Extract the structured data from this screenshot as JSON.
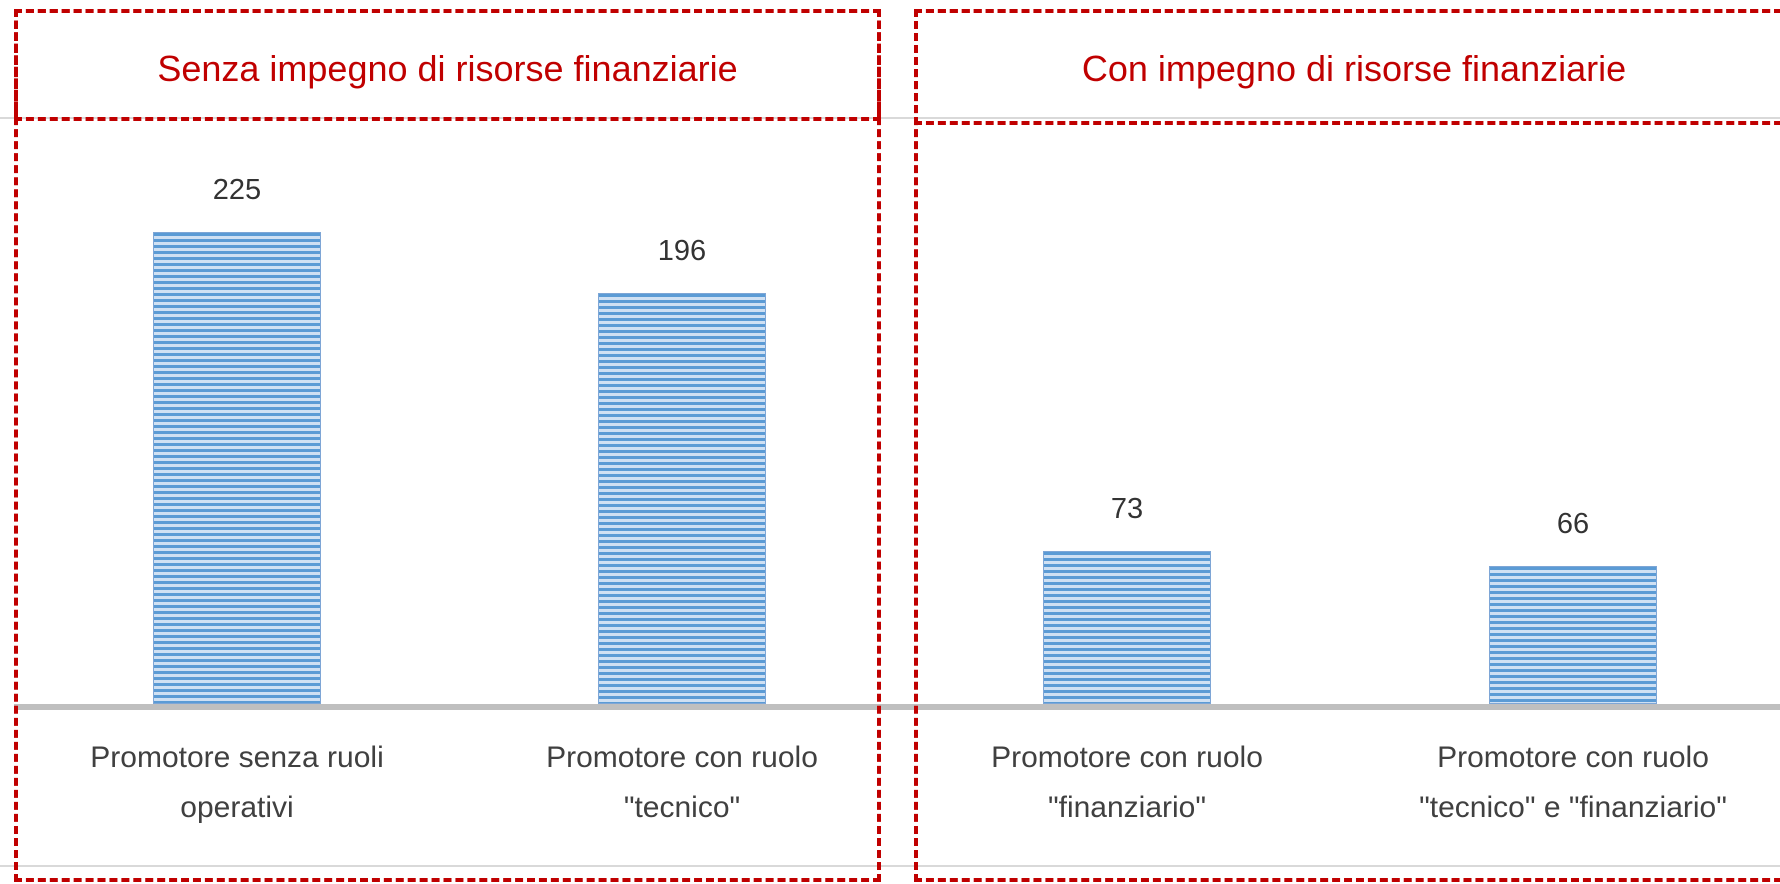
{
  "chart_data": {
    "type": "bar",
    "annotations": [
      "Senza impegno di risorse finanziarie",
      "Con impegno di risorse finanziarie"
    ],
    "categories": [
      "Promotore senza ruoli operativi",
      "Promotore con ruolo \"tecnico\"",
      "Promotore con ruolo \"finanziario\"",
      "Promotore con ruolo \"tecnico\" e \"finanziario\""
    ],
    "values": [
      225,
      196,
      73,
      66
    ],
    "color": "#5b9bd5"
  }
}
